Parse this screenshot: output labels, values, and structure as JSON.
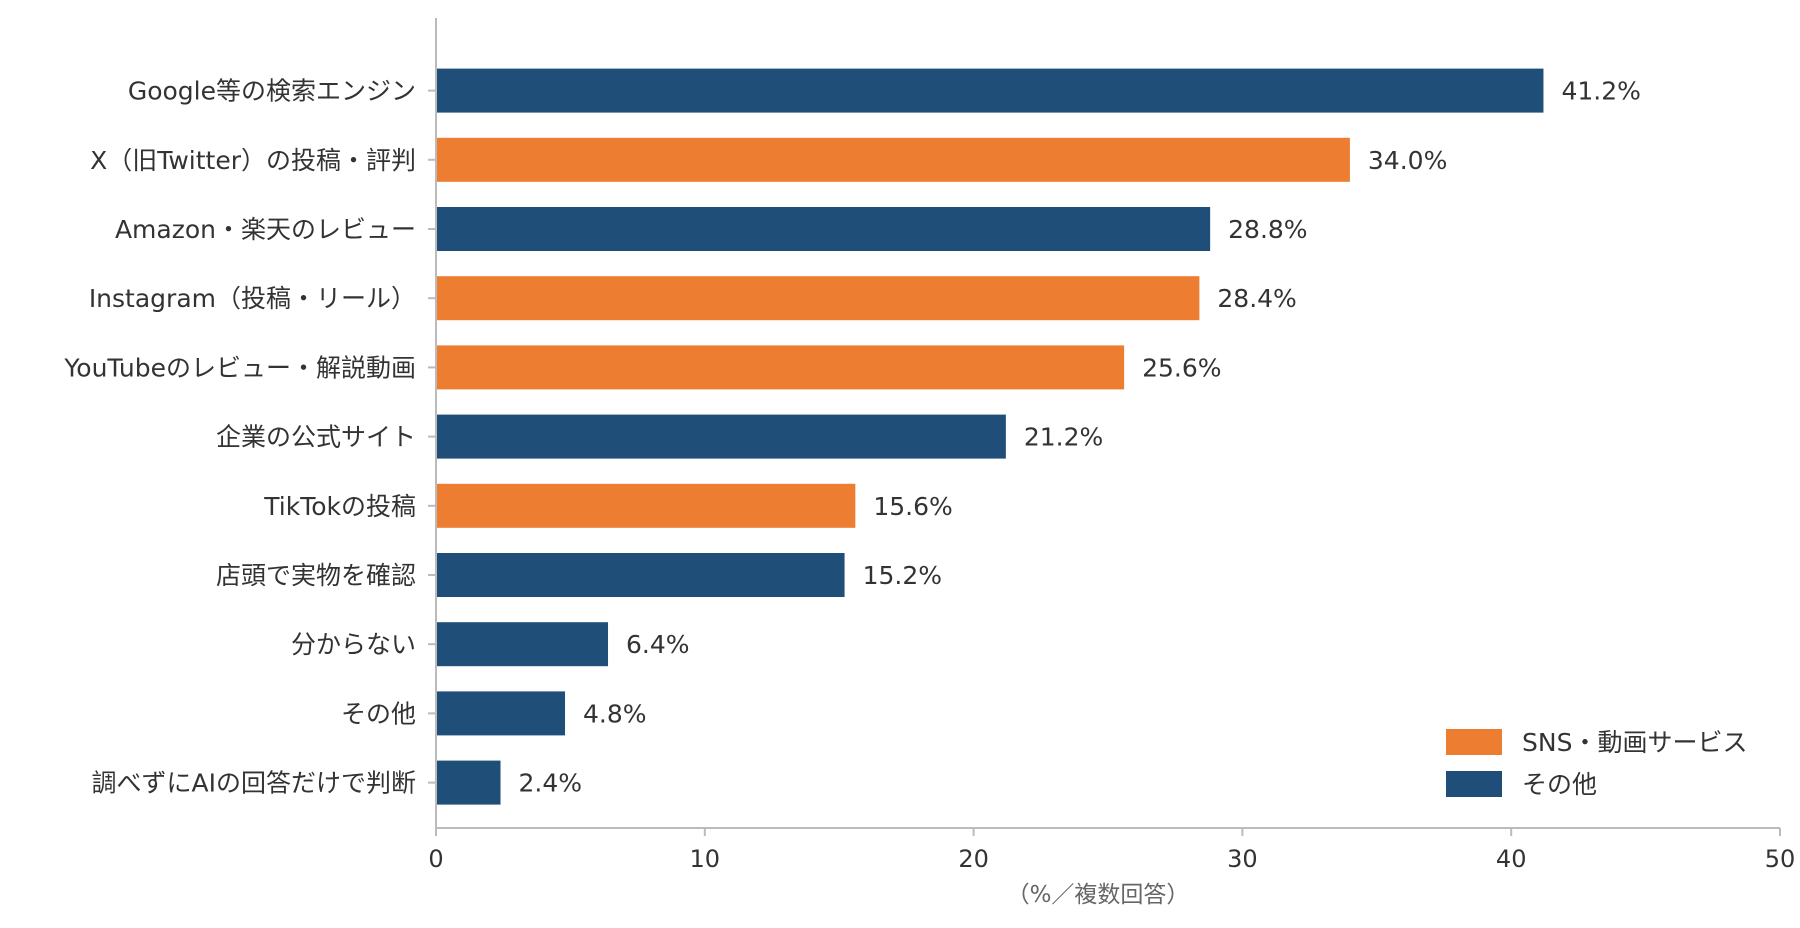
{
  "chart_data": {
    "type": "bar",
    "orientation": "horizontal",
    "categories": [
      "Google等の検索エンジン",
      "X（旧Twitter）の投稿・評判",
      "Amazon・楽天のレビュー",
      "Instagram（投稿・リール）",
      "YouTubeのレビュー・解説動画",
      "企業の公式サイト",
      "TikTokの投稿",
      "店頭で実物を確認",
      "分からない",
      "その他",
      "調べずにAIの回答だけで判断"
    ],
    "values": [
      41.2,
      34.0,
      28.8,
      28.4,
      25.6,
      21.2,
      15.6,
      15.2,
      6.4,
      4.8,
      2.4
    ],
    "value_labels": [
      "41.2%",
      "34.0%",
      "28.8%",
      "28.4%",
      "25.6%",
      "21.2%",
      "15.6%",
      "15.2%",
      "6.4%",
      "4.8%",
      "2.4%"
    ],
    "groups": [
      "その他",
      "SNS・動画サービス",
      "その他",
      "SNS・動画サービス",
      "SNS・動画サービス",
      "その他",
      "SNS・動画サービス",
      "その他",
      "その他",
      "その他",
      "その他"
    ],
    "legend": [
      {
        "name": "SNS・動画サービス",
        "color": "#ed7d31"
      },
      {
        "name": "その他",
        "color": "#1f4e79"
      }
    ],
    "legend_position": "bottom-right",
    "xlabel": "（%／複数回答）",
    "ylabel": "",
    "title": "",
    "xlim": [
      0,
      50
    ],
    "xticks": [
      0,
      10,
      20,
      30,
      40,
      50
    ],
    "grid": false
  }
}
